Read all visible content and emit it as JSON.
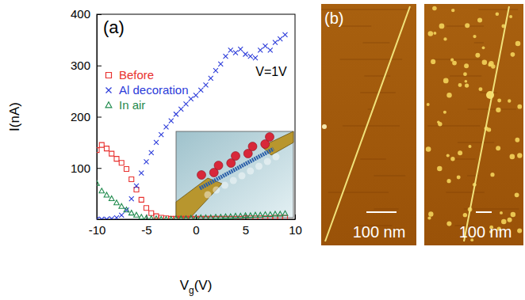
{
  "chart_data": {
    "type": "scatter",
    "title": "(a)",
    "x_label": "Vg(V)",
    "y_label": "I(nA)",
    "annotations": [
      "V=1V"
    ],
    "xlim": [
      -10,
      10
    ],
    "xticks": [
      -10,
      -5,
      0,
      5,
      10
    ],
    "ylim": [
      0,
      400
    ],
    "yticks": [
      100,
      200,
      300,
      400
    ],
    "legend": "upper left",
    "x": [
      -10,
      -9.5,
      -9,
      -8.5,
      -8,
      -7.5,
      -7,
      -6.5,
      -6,
      -5.5,
      -5,
      -4.5,
      -4,
      -3.5,
      -3,
      -2.5,
      -2,
      -1.5,
      -1,
      -0.5,
      0,
      0.5,
      1,
      1.5,
      2,
      2.5,
      3,
      3.5,
      4,
      4.5,
      5,
      5.5,
      6,
      6.5,
      7,
      7.5,
      8,
      8.5,
      9
    ],
    "series": [
      {
        "name": "Before",
        "color": "#e8312f",
        "marker": "square",
        "values": [
          135,
          145,
          138,
          128,
          118,
          110,
          98,
          78,
          58,
          38,
          22,
          12,
          6,
          3,
          2,
          1,
          1,
          1,
          1,
          1,
          1,
          1,
          1,
          1,
          1,
          1,
          1,
          1,
          1,
          1,
          2,
          2,
          2,
          2,
          2,
          2,
          3,
          3,
          3
        ]
      },
      {
        "name": "Al decoration",
        "color": "#2b3bd9",
        "marker": "x",
        "values": [
          0,
          0,
          0,
          1,
          3,
          8,
          18,
          40,
          65,
          90,
          112,
          130,
          150,
          165,
          180,
          192,
          205,
          215,
          225,
          235,
          242,
          252,
          262,
          275,
          290,
          303,
          318,
          330,
          325,
          332,
          322,
          318,
          315,
          330,
          338,
          330,
          345,
          352,
          360
        ]
      },
      {
        "name": "In air",
        "color": "#1f8a4c",
        "marker": "triangle",
        "values": [
          70,
          55,
          47,
          40,
          32,
          25,
          18,
          12,
          8,
          4,
          2,
          1,
          1,
          0,
          0,
          0,
          1,
          1,
          1,
          2,
          2,
          3,
          3,
          3,
          4,
          4,
          5,
          5,
          6,
          6,
          7,
          7,
          8,
          8,
          9,
          9,
          10,
          10,
          11
        ]
      }
    ]
  },
  "images": {
    "label": "(b)",
    "scale_bars": [
      "100 nm",
      "100 nm"
    ]
  }
}
